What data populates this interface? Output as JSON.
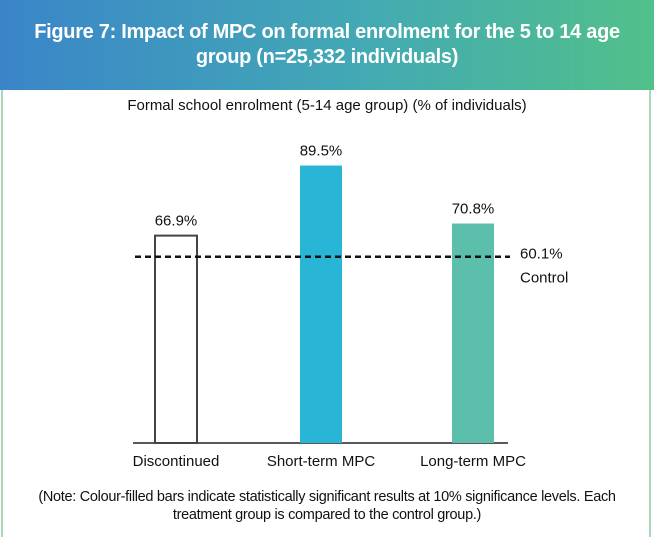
{
  "chart_data": {
    "type": "bar",
    "title": "Figure 7: Impact of MPC on formal enrolment for the 5 to 14 age group (n=25,332 individuals)",
    "subtitle": "Formal school enrolment (5-14 age group) (% of individuals)",
    "categories": [
      "Discontinued",
      "Short-term MPC",
      "Long-term MPC"
    ],
    "values": [
      66.9,
      89.5,
      70.8
    ],
    "value_labels": [
      "66.9%",
      "89.5%",
      "70.8%"
    ],
    "colors": [
      "#ffffff",
      "#29b5d6",
      "#5bbfab"
    ],
    "control": {
      "value": 60.1,
      "label": "60.1%",
      "name": "Control"
    },
    "note": "(Note: Colour-filled bars indicate statistically significant results at 10% significance levels. Each treatment group is compared to the control group.)"
  }
}
